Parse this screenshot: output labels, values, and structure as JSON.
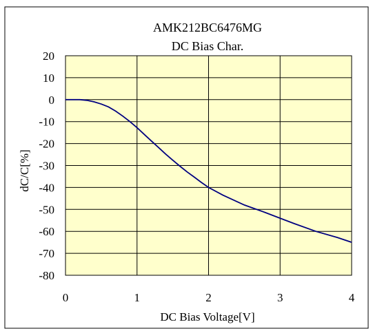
{
  "chart_data": {
    "type": "line",
    "title": "AMK212BC6476MG",
    "subtitle": "DC Bias Char.",
    "xlabel": "DC Bias Voltage[V]",
    "ylabel": "dC/C[%]",
    "xlim": [
      0,
      4
    ],
    "ylim": [
      -80,
      20
    ],
    "x_ticks": [
      0,
      1,
      2,
      3,
      4
    ],
    "y_ticks": [
      20,
      10,
      0,
      -10,
      -20,
      -30,
      -40,
      -50,
      -60,
      -70,
      -80
    ],
    "grid": true,
    "colors": {
      "plot_background": "#FFFFCC",
      "line": "#000080",
      "grid": "#000000"
    },
    "series": [
      {
        "x": [
          0,
          0.1,
          0.2,
          0.3,
          0.4,
          0.5,
          0.6,
          0.7,
          0.8,
          0.9,
          1.0,
          1.1,
          1.2,
          1.3,
          1.4,
          1.5,
          1.6,
          1.7,
          1.8,
          1.9,
          2.0,
          2.2,
          2.5,
          2.8,
          3.0,
          3.2,
          3.5,
          3.8,
          4.0
        ],
        "y": [
          0,
          0,
          0,
          -0.3,
          -1,
          -2,
          -3.3,
          -5.2,
          -7.5,
          -10,
          -12.8,
          -15.8,
          -18.8,
          -21.8,
          -24.8,
          -27.6,
          -30.3,
          -32.9,
          -35.3,
          -37.7,
          -40,
          -43.5,
          -48,
          -51.5,
          -54,
          -56.5,
          -60,
          -62.8,
          -65
        ]
      }
    ]
  }
}
